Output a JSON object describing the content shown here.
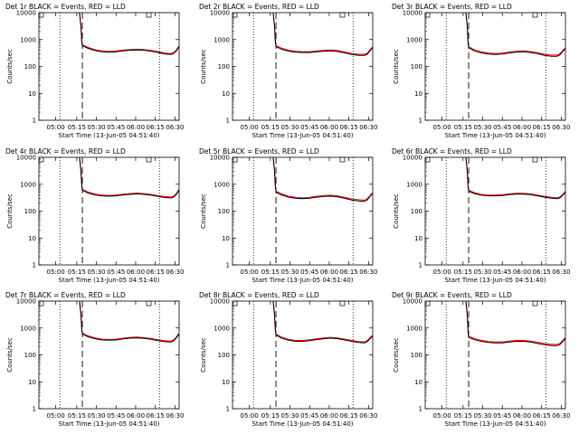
{
  "chart_data": {
    "type": "line",
    "layout": "3x3 grid",
    "y_scale": "log",
    "ylim": [
      1,
      10000
    ],
    "xlim": [
      0,
      100
    ],
    "x_ticks": [
      {
        "label": "05:00",
        "value": 12
      },
      {
        "label": "05:15",
        "value": 27
      },
      {
        "label": "05:30",
        "value": 41
      },
      {
        "label": "05:45",
        "value": 55
      },
      {
        "label": "06:00",
        "value": 69
      },
      {
        "label": "06:15",
        "value": 83
      },
      {
        "label": "06:30",
        "value": 97
      }
    ],
    "y_ticks": [
      {
        "label": "1",
        "value": 1
      },
      {
        "label": "10",
        "value": 10
      },
      {
        "label": "100",
        "value": 100
      },
      {
        "label": "1000",
        "value": 1000
      },
      {
        "label": "10000",
        "value": 10000
      }
    ],
    "xlabel": "Start Time (13-Jun-05 04:51:40)",
    "ylabel": "Counts/sec",
    "series_colors": {
      "events": "#000000",
      "lld": "#ff0000"
    },
    "markers": {
      "dotted_lines": [
        15,
        86
      ],
      "dashed_line": 31
    },
    "x_points": [
      29,
      30,
      30.5,
      31,
      35,
      40,
      45,
      50,
      55,
      60,
      65,
      70,
      75,
      80,
      85,
      90,
      94,
      96,
      98,
      100
    ],
    "panels": [
      {
        "title": "Det 1r BLACK = Events, RED = LLD",
        "events": [
          10000,
          3000,
          900,
          600,
          470,
          390,
          350,
          340,
          350,
          380,
          400,
          410,
          400,
          370,
          330,
          290,
          280,
          300,
          380,
          550
        ],
        "lld": [
          10000,
          3300,
          1000,
          650,
          510,
          420,
          375,
          365,
          375,
          405,
          430,
          440,
          430,
          395,
          355,
          315,
          305,
          325,
          410,
          600
        ]
      },
      {
        "title": "Det 2r BLACK = Events, RED = LLD",
        "events": [
          10000,
          3000,
          850,
          550,
          440,
          370,
          340,
          330,
          330,
          350,
          370,
          380,
          360,
          320,
          280,
          260,
          260,
          280,
          380,
          500
        ],
        "lld": [
          10000,
          3300,
          950,
          600,
          480,
          400,
          365,
          355,
          355,
          375,
          400,
          410,
          390,
          345,
          305,
          285,
          285,
          305,
          410,
          550
        ]
      },
      {
        "title": "Det 3r BLACK = Events, RED = LLD",
        "events": [
          10000,
          3000,
          800,
          500,
          380,
          320,
          290,
          280,
          290,
          320,
          340,
          350,
          330,
          300,
          260,
          240,
          240,
          270,
          360,
          450
        ],
        "lld": [
          10000,
          3300,
          880,
          550,
          420,
          350,
          315,
          305,
          315,
          345,
          370,
          380,
          360,
          325,
          285,
          265,
          265,
          295,
          390,
          500
        ]
      },
      {
        "title": "Det 4r BLACK = Events, RED = LLD",
        "events": [
          10000,
          3000,
          900,
          600,
          470,
          400,
          370,
          360,
          370,
          400,
          420,
          440,
          420,
          390,
          350,
          320,
          310,
          330,
          420,
          600
        ],
        "lld": [
          10000,
          3300,
          1000,
          650,
          510,
          430,
          395,
          385,
          395,
          430,
          450,
          470,
          450,
          415,
          375,
          345,
          335,
          355,
          450,
          650
        ]
      },
      {
        "title": "Det 5r BLACK = Events, RED = LLD",
        "events": [
          10000,
          3000,
          850,
          500,
          400,
          330,
          300,
          290,
          300,
          330,
          350,
          360,
          340,
          300,
          260,
          240,
          230,
          260,
          350,
          450
        ],
        "lld": [
          10000,
          3300,
          950,
          550,
          440,
          360,
          325,
          315,
          325,
          355,
          380,
          390,
          370,
          325,
          285,
          265,
          255,
          285,
          380,
          500
        ]
      },
      {
        "title": "Det 6r BLACK = Events, RED = LLD",
        "events": [
          10000,
          3000,
          850,
          550,
          450,
          390,
          370,
          370,
          380,
          410,
          430,
          430,
          410,
          370,
          330,
          300,
          290,
          310,
          380,
          500
        ],
        "lld": [
          10000,
          3300,
          950,
          600,
          490,
          420,
          395,
          395,
          405,
          440,
          460,
          460,
          440,
          395,
          355,
          325,
          315,
          335,
          410,
          550
        ]
      },
      {
        "title": "Det 7r BLACK = Events, RED = LLD",
        "events": [
          10000,
          3000,
          900,
          600,
          470,
          400,
          360,
          350,
          360,
          390,
          420,
          430,
          410,
          380,
          340,
          310,
          300,
          330,
          430,
          600
        ],
        "lld": [
          10000,
          3300,
          1000,
          650,
          510,
          430,
          385,
          375,
          385,
          420,
          450,
          460,
          440,
          405,
          365,
          335,
          325,
          355,
          460,
          650
        ]
      },
      {
        "title": "Det 8r BLACK = Events, RED = LLD",
        "events": [
          10000,
          3000,
          850,
          550,
          420,
          350,
          320,
          320,
          340,
          370,
          400,
          420,
          400,
          360,
          320,
          290,
          280,
          310,
          400,
          500
        ],
        "lld": [
          10000,
          3300,
          950,
          600,
          460,
          380,
          345,
          345,
          365,
          400,
          430,
          450,
          430,
          385,
          345,
          315,
          305,
          335,
          430,
          550
        ]
      },
      {
        "title": "Det 9r BLACK = Events, RED = LLD",
        "events": [
          10000,
          3000,
          800,
          450,
          370,
          320,
          290,
          280,
          280,
          300,
          320,
          320,
          300,
          270,
          240,
          220,
          220,
          240,
          310,
          400
        ],
        "lld": [
          10000,
          3300,
          880,
          500,
          410,
          350,
          315,
          305,
          305,
          325,
          345,
          345,
          325,
          295,
          265,
          245,
          245,
          265,
          340,
          450
        ]
      }
    ]
  }
}
